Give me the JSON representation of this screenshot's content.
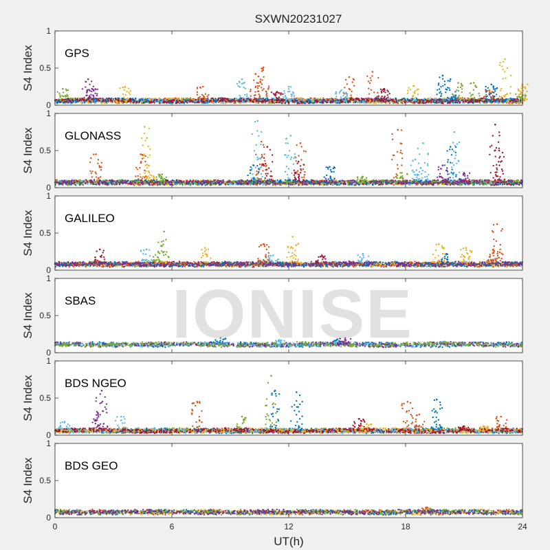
{
  "figure": {
    "title": "SXWN20231027",
    "xlabel": "UT(h)",
    "watermark": "IONISE"
  },
  "colors": [
    "#0072BD",
    "#D95319",
    "#EDB120",
    "#7E2F8E",
    "#77AC30",
    "#4DBEEE",
    "#A2142F"
  ],
  "chart_data": [
    {
      "type": "scatter",
      "panel": "GPS",
      "ylabel": "S4 Index",
      "xlim": [
        0,
        24
      ],
      "ylim": [
        0,
        1
      ],
      "xticks": [
        0,
        6,
        12,
        18,
        24
      ],
      "yticks": [
        0,
        0.5,
        1
      ],
      "baseline": 0.06,
      "series": [
        {
          "color": "#7E2F8E",
          "peaks": [
            [
              1.7,
              0.35
            ],
            [
              1.9,
              0.22
            ]
          ]
        },
        {
          "color": "#77AC30",
          "peaks": [
            [
              0.4,
              0.22
            ],
            [
              20.7,
              0.3
            ],
            [
              21.5,
              0.3
            ],
            [
              23.9,
              0.15
            ]
          ]
        },
        {
          "color": "#D95319",
          "peaks": [
            [
              7.6,
              0.25
            ],
            [
              10.3,
              0.42
            ],
            [
              10.7,
              0.51
            ],
            [
              15.1,
              0.38
            ],
            [
              16.3,
              0.45
            ],
            [
              22.3,
              0.2
            ]
          ]
        },
        {
          "color": "#EDB120",
          "peaks": [
            [
              3.6,
              0.25
            ],
            [
              18.4,
              0.26
            ],
            [
              23.1,
              0.62
            ],
            [
              24.0,
              0.28
            ]
          ]
        },
        {
          "color": "#5DB8E8",
          "peaks": [
            [
              9.6,
              0.35
            ],
            [
              12.0,
              0.25
            ],
            [
              14.7,
              0.2
            ]
          ]
        },
        {
          "color": "#0072BD",
          "peaks": [
            [
              19.9,
              0.4
            ],
            [
              20.3,
              0.35
            ],
            [
              22.4,
              0.28
            ]
          ]
        },
        {
          "color": "#A2142F",
          "peaks": [
            [
              11.4,
              0.18
            ],
            [
              16.9,
              0.22
            ]
          ]
        }
      ]
    },
    {
      "type": "scatter",
      "panel": "GLONASS",
      "ylabel": "S4 Index",
      "xlim": [
        0,
        24
      ],
      "ylim": [
        0,
        1
      ],
      "xticks": [
        0,
        6,
        12,
        18,
        24
      ],
      "yticks": [
        0,
        0.5,
        1
      ],
      "baseline": 0.07,
      "series": [
        {
          "color": "#EDB120",
          "peaks": [
            [
              4.6,
              0.82
            ],
            [
              4.8,
              0.3
            ]
          ]
        },
        {
          "color": "#D95319",
          "peaks": [
            [
              2.1,
              0.45
            ],
            [
              4.4,
              0.45
            ],
            [
              10.6,
              0.62
            ],
            [
              12.6,
              0.6
            ],
            [
              17.6,
              0.78
            ]
          ]
        },
        {
          "color": "#5DB8E8",
          "peaks": [
            [
              10.4,
              0.9
            ],
            [
              12.1,
              0.7
            ],
            [
              18.5,
              0.38
            ],
            [
              18.9,
              0.6
            ],
            [
              20.5,
              0.75
            ]
          ]
        },
        {
          "color": "#A2142F",
          "peaks": [
            [
              10.9,
              0.55
            ],
            [
              12.5,
              0.35
            ],
            [
              22.6,
              0.85
            ],
            [
              22.8,
              0.5
            ]
          ]
        },
        {
          "color": "#0072BD",
          "peaks": [
            [
              10.2,
              0.3
            ],
            [
              14.1,
              0.28
            ],
            [
              20.3,
              0.55
            ]
          ]
        },
        {
          "color": "#77AC30",
          "peaks": [
            [
              5.5,
              0.18
            ],
            [
              15.8,
              0.15
            ],
            [
              17.8,
              0.2
            ]
          ]
        },
        {
          "color": "#7E2F8E",
          "peaks": [
            [
              19.9,
              0.3
            ],
            [
              21.0,
              0.2
            ]
          ]
        }
      ]
    },
    {
      "type": "scatter",
      "panel": "GALILEO",
      "ylabel": "S4 Index",
      "xlim": [
        0,
        24
      ],
      "ylim": [
        0,
        1
      ],
      "xticks": [
        0,
        6,
        12,
        18,
        24
      ],
      "yticks": [
        0,
        0.5,
        1
      ],
      "baseline": 0.08,
      "series": [
        {
          "color": "#77AC30",
          "peaks": [
            [
              5.6,
              0.52
            ],
            [
              5.3,
              0.25
            ]
          ]
        },
        {
          "color": "#5DB8E8",
          "peaks": [
            [
              4.7,
              0.28
            ],
            [
              11.2,
              0.2
            ],
            [
              15.8,
              0.22
            ]
          ]
        },
        {
          "color": "#A2142F",
          "peaks": [
            [
              2.3,
              0.28
            ],
            [
              13.7,
              0.2
            ]
          ]
        },
        {
          "color": "#EDB120",
          "peaks": [
            [
              7.7,
              0.3
            ],
            [
              12.2,
              0.45
            ],
            [
              19.7,
              0.35
            ],
            [
              21.1,
              0.3
            ]
          ]
        },
        {
          "color": "#D95319",
          "peaks": [
            [
              10.7,
              0.35
            ],
            [
              22.7,
              0.62
            ],
            [
              22.5,
              0.28
            ]
          ]
        },
        {
          "color": "#0072BD",
          "peaks": [
            [
              20.1,
              0.22
            ]
          ]
        },
        {
          "color": "#7E2F8E",
          "peaks": [
            [
              15.1,
              0.12
            ]
          ]
        }
      ]
    },
    {
      "type": "scatter",
      "panel": "SBAS",
      "ylabel": "S4 Index",
      "xlim": [
        0,
        24
      ],
      "ylim": [
        0,
        1
      ],
      "xticks": [
        0,
        6,
        12,
        18,
        24
      ],
      "yticks": [
        0,
        0.5,
        1
      ],
      "baseline": 0.11,
      "series": [
        {
          "color": "#0072BD",
          "peaks": [
            [
              8.5,
              0.2
            ],
            [
              14.5,
              0.18
            ]
          ]
        },
        {
          "color": "#5DB8E8",
          "peaks": [
            [
              11.5,
              0.17
            ],
            [
              20.0,
              0.15
            ]
          ]
        },
        {
          "color": "#7E2F8E",
          "peaks": [
            [
              14.9,
              0.2
            ]
          ]
        },
        {
          "color": "#77AC30",
          "peaks": [
            [
              3.0,
              0.12
            ]
          ]
        }
      ]
    },
    {
      "type": "scatter",
      "panel": "BDS NGEO",
      "ylabel": "S4 Index",
      "xlim": [
        0,
        24
      ],
      "ylim": [
        0,
        1
      ],
      "xticks": [
        0,
        6,
        12,
        18,
        24
      ],
      "yticks": [
        0,
        0.5,
        1
      ],
      "baseline": 0.06,
      "series": [
        {
          "color": "#7E2F8E",
          "peaks": [
            [
              2.4,
              0.6
            ],
            [
              2.2,
              0.3
            ]
          ]
        },
        {
          "color": "#D95319",
          "peaks": [
            [
              7.3,
              0.45
            ],
            [
              18.1,
              0.45
            ],
            [
              18.7,
              0.28
            ],
            [
              22.9,
              0.25
            ]
          ]
        },
        {
          "color": "#77AC30",
          "peaks": [
            [
              11.1,
              0.8
            ],
            [
              9.6,
              0.25
            ]
          ]
        },
        {
          "color": "#0072BD",
          "peaks": [
            [
              11.3,
              0.6
            ],
            [
              12.4,
              0.58
            ],
            [
              19.6,
              0.48
            ]
          ]
        },
        {
          "color": "#5DB8E8",
          "peaks": [
            [
              3.4,
              0.25
            ],
            [
              0.5,
              0.18
            ]
          ]
        },
        {
          "color": "#EDB120",
          "peaks": [
            [
              16.0,
              0.15
            ],
            [
              22.0,
              0.12
            ]
          ]
        },
        {
          "color": "#A2142F",
          "peaks": [
            [
              15.6,
              0.22
            ],
            [
              21.0,
              0.12
            ]
          ]
        }
      ]
    },
    {
      "type": "scatter",
      "panel": "BDS GEO",
      "ylabel": "S4 Index",
      "xlim": [
        0,
        24
      ],
      "ylim": [
        0,
        1
      ],
      "xticks": [
        0,
        6,
        12,
        18,
        24
      ],
      "yticks": [
        0,
        0.5,
        1
      ],
      "baseline": 0.075,
      "series": [
        {
          "color": "#D95319",
          "peaks": [
            [
              19.1,
              0.14
            ]
          ]
        },
        {
          "color": "#EDB120",
          "peaks": [
            [
              12.0,
              0.09
            ]
          ]
        },
        {
          "color": "#0072BD",
          "peaks": [
            [
              3.0,
              0.09
            ]
          ]
        },
        {
          "color": "#77AC30",
          "peaks": [
            [
              8.0,
              0.08
            ]
          ]
        },
        {
          "color": "#7E2F8E",
          "peaks": [
            [
              15.0,
              0.08
            ]
          ]
        }
      ]
    }
  ]
}
